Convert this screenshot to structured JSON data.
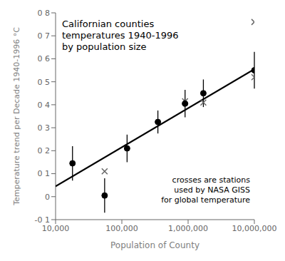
{
  "chart_data": {
    "type": "scatter",
    "title": "Californian counties\ntemperatures 1940-1996\nby population size",
    "x_label": "Population of County",
    "y_label": "Temperature trend per Decade  1940-1996  °C",
    "annotation": "crosses are stations\nused by NASA GISS\nfor global temperature",
    "log": "x",
    "grid": false,
    "xlim": [
      10000,
      10000000
    ],
    "ylim": [
      -0.1,
      0.8
    ],
    "xticks": [
      {
        "value": 10000,
        "label": "10,000"
      },
      {
        "value": 100000,
        "label": "100,000"
      },
      {
        "value": 1000000,
        "label": "1,000,000"
      },
      {
        "value": 10000000,
        "label": "10,000,000"
      }
    ],
    "yticks": [
      {
        "value": -0.1,
        "label": "-0 1"
      },
      0,
      {
        "value": 0.1,
        "label": "0 1"
      },
      {
        "value": 0.2,
        "label": "0 2"
      },
      {
        "value": 0.3,
        "label": "0 3"
      },
      {
        "value": 0.4,
        "label": "0 4"
      },
      {
        "value": 0.5,
        "label": "0 5"
      },
      {
        "value": 0.6,
        "label": "0 6"
      },
      {
        "value": 0.7,
        "label": "0 7"
      },
      {
        "value": 0.8,
        "label": "0 8"
      }
    ],
    "series": [
      {
        "type": "line",
        "color": "#000000",
        "x": [
          10000,
          10000000
        ],
        "values": [
          0.045,
          0.555
        ]
      },
      {
        "type": "scatter",
        "marker": "x",
        "color": "#666666",
        "x": [
          55000,
          900000,
          1700000,
          10000000,
          10000000
        ],
        "values": [
          0.11,
          0.415,
          0.41,
          0.52,
          0.76
        ]
      },
      {
        "type": "scatter",
        "marker": "circle",
        "color": "#000000",
        "x": [
          18000,
          55000,
          120000,
          350000,
          900000,
          1700000,
          10000000
        ],
        "values": [
          0.145,
          0.005,
          0.21,
          0.325,
          0.405,
          0.45,
          0.55
        ],
        "error": [
          0.075,
          0.075,
          0.06,
          0.05,
          0.06,
          0.06,
          0.08
        ]
      }
    ]
  }
}
